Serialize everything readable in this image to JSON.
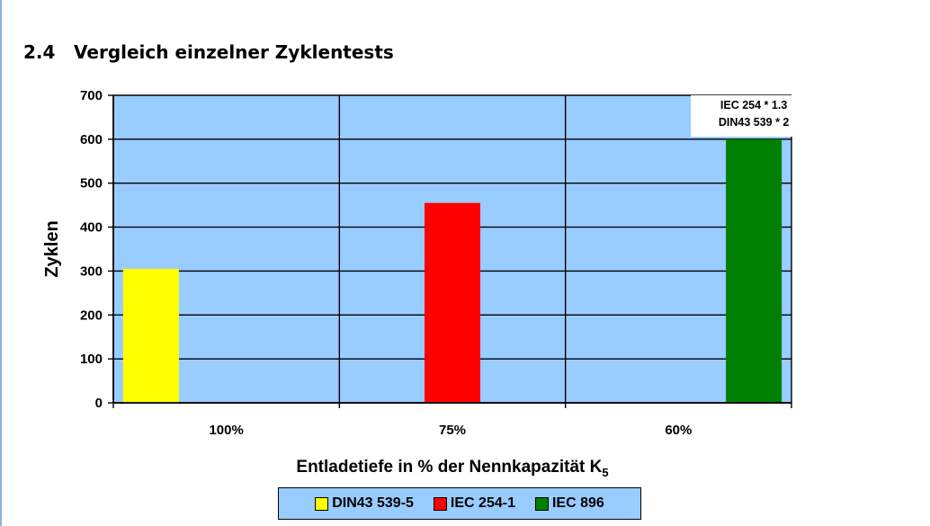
{
  "heading": {
    "number": "2.4",
    "text": "Vergleich einzelner Zyklentests"
  },
  "chart_data": {
    "type": "bar",
    "categories": [
      "100%",
      "75%",
      "60%"
    ],
    "series": [
      {
        "name": "DIN43 539-5",
        "color": "#ffff00",
        "values": [
          305,
          null,
          null
        ]
      },
      {
        "name": "IEC 254-1",
        "color": "#ff0000",
        "values": [
          null,
          455,
          null
        ]
      },
      {
        "name": "IEC 896",
        "color": "#008000",
        "values": [
          null,
          null,
          600
        ]
      }
    ],
    "ylabel": "Zyklen",
    "xlabel_main": "Entladetiefe in % der Nennkapazität K",
    "xlabel_subscript": "5",
    "ylim": [
      0,
      700
    ],
    "yticks": [
      "0",
      "100",
      "200",
      "300",
      "400",
      "500",
      "600",
      "700"
    ],
    "annotation": [
      "IEC 254 * 1.3",
      "DIN43 539 * 2"
    ],
    "plot_background": "#99ccff",
    "grid": true,
    "legend_position": "bottom"
  }
}
